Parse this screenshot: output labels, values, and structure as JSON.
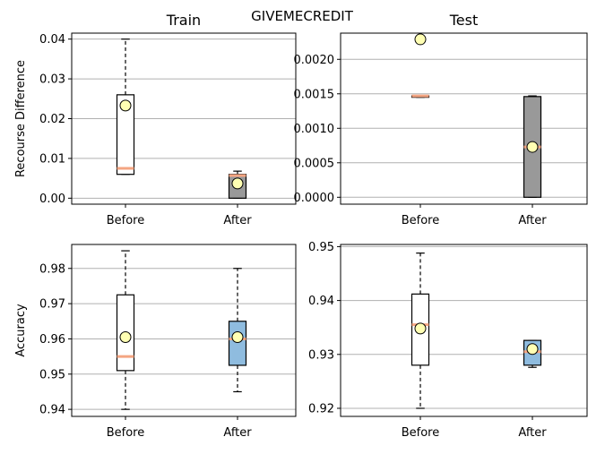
{
  "title": "GIVEMECREDIT",
  "colors": {
    "median": "#f4a582",
    "mean_face": "#ffffb3",
    "gray_box": "#999999",
    "blue_box": "#8fbcdf",
    "white_box": "#ffffff",
    "grid": "#b0b0b0"
  },
  "chart_data": [
    {
      "type": "box",
      "title": "Train",
      "ylabel": "Recourse Difference",
      "ylim": [
        -0.0015,
        0.0415
      ],
      "yticks": [
        0.0,
        0.01,
        0.02,
        0.03,
        0.04
      ],
      "ytick_labels": [
        "0.00",
        "0.01",
        "0.02",
        "0.03",
        "0.04"
      ],
      "categories": [
        "Before",
        "After"
      ],
      "boxes": [
        {
          "category": "Before",
          "whisker_low": 0.006,
          "q1": 0.006,
          "median": 0.0075,
          "q3": 0.026,
          "whisker_high": 0.04,
          "mean": 0.0233,
          "fill": "white_box"
        },
        {
          "category": "After",
          "whisker_low": 0.0,
          "q1": 0.0,
          "median": 0.0057,
          "q3": 0.006,
          "whisker_high": 0.0068,
          "mean": 0.0037,
          "fill": "gray_box"
        }
      ]
    },
    {
      "type": "box",
      "title": "Test",
      "ylabel": "",
      "ylim": [
        -0.0001,
        0.00238
      ],
      "yticks": [
        0.0,
        0.0005,
        0.001,
        0.0015,
        0.002
      ],
      "ytick_labels": [
        "0.0000",
        "0.0005",
        "0.0010",
        "0.0015",
        "0.0020"
      ],
      "categories": [
        "Before",
        "After"
      ],
      "boxes": [
        {
          "category": "Before",
          "whisker_low": 0.00145,
          "q1": 0.00145,
          "median": 0.00147,
          "q3": 0.00147,
          "whisker_high": 0.00147,
          "mean": 0.00229,
          "fill": "white_box"
        },
        {
          "category": "After",
          "whisker_low": 0.0,
          "q1": 0.0,
          "median": 0.00073,
          "q3": 0.00146,
          "whisker_high": 0.00147,
          "mean": 0.00073,
          "fill": "gray_box"
        }
      ]
    },
    {
      "type": "box",
      "title": "",
      "ylabel": "Accuracy",
      "ylim": [
        0.938,
        0.9868
      ],
      "yticks": [
        0.94,
        0.95,
        0.96,
        0.97,
        0.98
      ],
      "ytick_labels": [
        "0.94",
        "0.95",
        "0.96",
        "0.97",
        "0.98"
      ],
      "categories": [
        "Before",
        "After"
      ],
      "boxes": [
        {
          "category": "Before",
          "whisker_low": 0.94,
          "q1": 0.951,
          "median": 0.955,
          "q3": 0.9725,
          "whisker_high": 0.985,
          "mean": 0.9605,
          "fill": "white_box"
        },
        {
          "category": "After",
          "whisker_low": 0.945,
          "q1": 0.9525,
          "median": 0.96,
          "q3": 0.965,
          "whisker_high": 0.98,
          "mean": 0.9605,
          "fill": "blue_box"
        }
      ]
    },
    {
      "type": "box",
      "title": "",
      "ylabel": "",
      "ylim": [
        0.9185,
        0.9504
      ],
      "yticks": [
        0.92,
        0.93,
        0.94,
        0.95
      ],
      "ytick_labels": [
        "0.92",
        "0.93",
        "0.94",
        "0.95"
      ],
      "categories": [
        "Before",
        "After"
      ],
      "boxes": [
        {
          "category": "Before",
          "whisker_low": 0.92,
          "q1": 0.928,
          "median": 0.9355,
          "q3": 0.9412,
          "whisker_high": 0.9488,
          "mean": 0.9348,
          "fill": "white_box"
        },
        {
          "category": "After",
          "whisker_low": 0.9276,
          "q1": 0.928,
          "median": 0.9305,
          "q3": 0.9326,
          "whisker_high": 0.9326,
          "mean": 0.931,
          "fill": "blue_box"
        }
      ]
    }
  ]
}
